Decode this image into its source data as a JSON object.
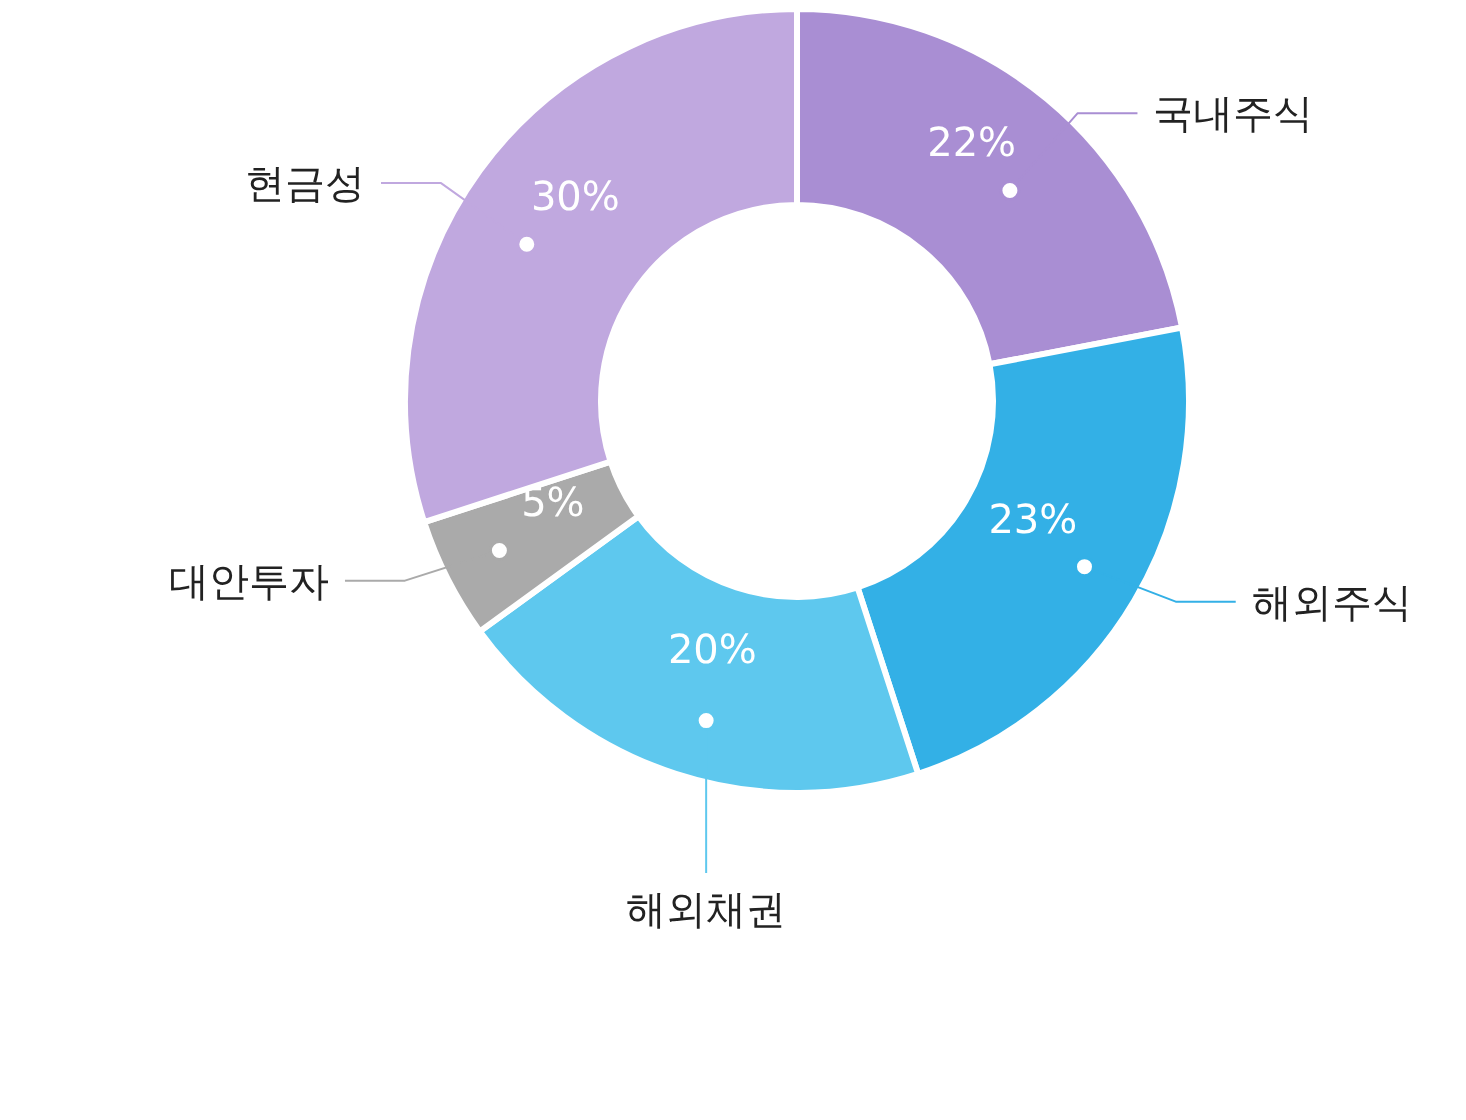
{
  "chart_data": {
    "type": "donut",
    "categories": [
      "국내주식",
      "해외주식",
      "해외채권",
      "대안투자",
      "현금성"
    ],
    "values": [
      22,
      23,
      20,
      5,
      30
    ],
    "value_labels": [
      "22%",
      "23%",
      "20%",
      "5%",
      "30%"
    ],
    "colors": [
      "#a98ed3",
      "#33b0e6",
      "#5ec8ee",
      "#aaaaaa",
      "#c0a8df"
    ],
    "legend": false
  }
}
